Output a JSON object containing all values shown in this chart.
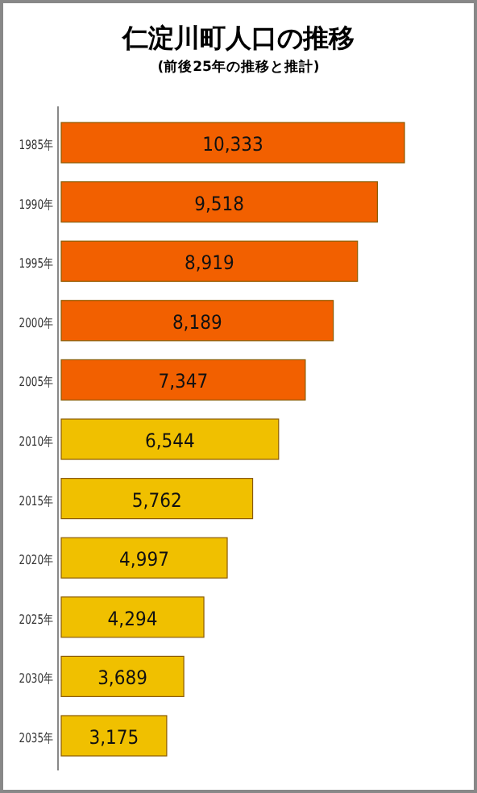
{
  "chart_data": {
    "type": "bar",
    "orientation": "horizontal",
    "title": "仁淀川町人口の推移",
    "subtitle": "(前後25年の推移と推計)",
    "categories": [
      "1985年",
      "1990年",
      "1995年",
      "2000年",
      "2005年",
      "2010年",
      "2015年",
      "2020年",
      "2025年",
      "2030年",
      "2035年"
    ],
    "values": [
      10333,
      9518,
      8919,
      8189,
      7347,
      6544,
      5762,
      4997,
      4294,
      3689,
      3175
    ],
    "colors": [
      "#f26000",
      "#f26000",
      "#f26000",
      "#f26000",
      "#f26000",
      "#f0c000",
      "#f0c000",
      "#f0c000",
      "#f0c000",
      "#f0c000",
      "#f0c000"
    ],
    "value_labels": [
      "10,333",
      "9,518",
      "8,919",
      "8,189",
      "7,347",
      "6,544",
      "5,762",
      "4,997",
      "4,294",
      "3,689",
      "3,175"
    ]
  }
}
